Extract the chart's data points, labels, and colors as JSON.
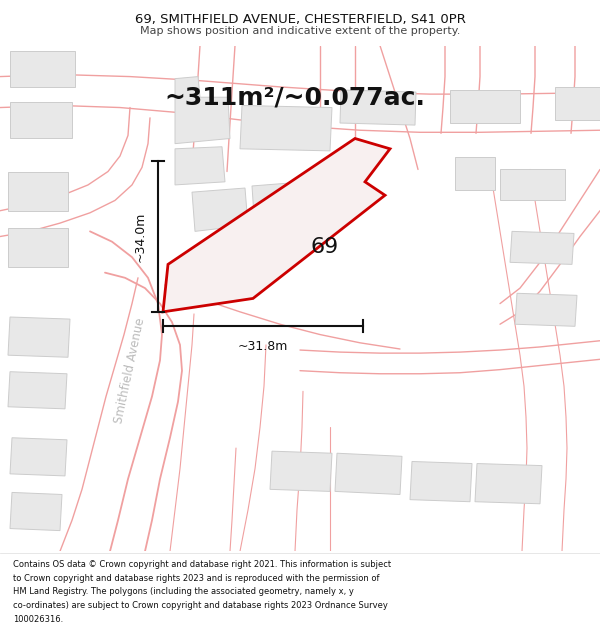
{
  "title": "69, SMITHFIELD AVENUE, CHESTERFIELD, S41 0PR",
  "subtitle": "Map shows position and indicative extent of the property.",
  "area_text": "~311m²/~0.077ac.",
  "label_69": "69",
  "dim_vertical": "~34.0m",
  "dim_horizontal": "~31.8m",
  "road_label": "Smithfield Avenue",
  "footer": "Contains OS data © Crown copyright and database right 2021. This information is subject to Crown copyright and database rights 2023 and is reproduced with the permission of HM Land Registry. The polygons (including the associated geometry, namely x, y co-ordinates) are subject to Crown copyright and database rights 2023 Ordnance Survey 100026316.",
  "bg_color": "#ffffff",
  "road_line_color": "#f0a0a0",
  "building_fill": "#e8e8e8",
  "building_edge": "#cccccc",
  "property_color": "#cc0000",
  "property_fill": "#f8f0f0",
  "dim_color": "#111111",
  "road_label_color": "#bbbbbb",
  "title_color": "#111111",
  "subtitle_color": "#444444",
  "footer_color": "#111111",
  "area_text_color": "#111111"
}
